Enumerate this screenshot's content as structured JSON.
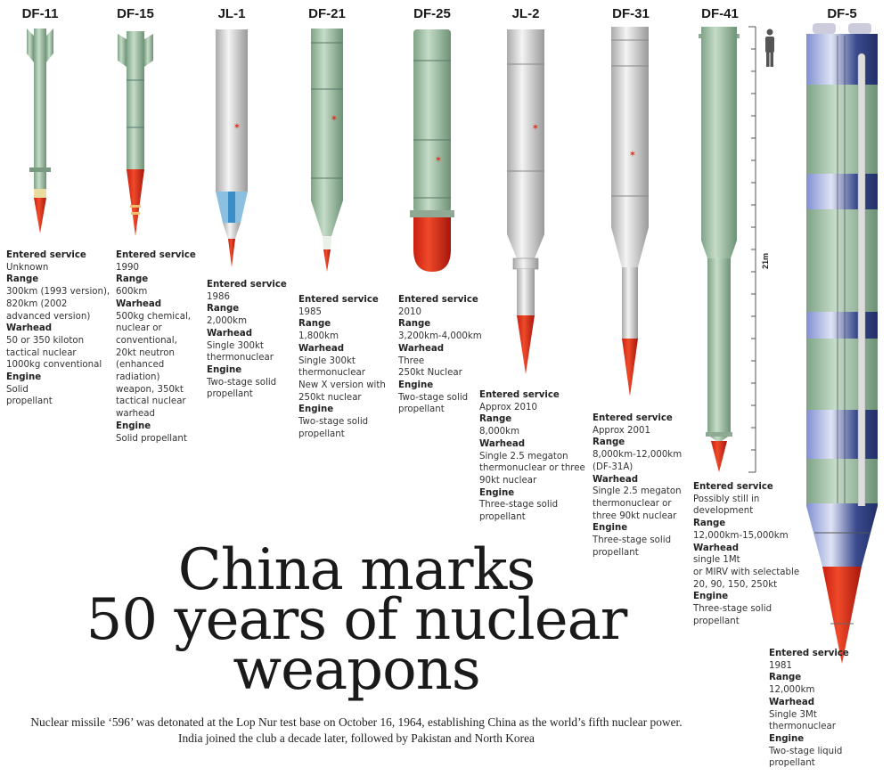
{
  "headline": [
    "China marks",
    "50 years of nuclear",
    "weapons"
  ],
  "subtitle": "Nuclear missile ‘596’ was detonated at the Lop Nur test base on October 16, 1964, establishing China as the world’s fifth nuclear power. India joined the club a decade later, followed by Pakistan and North Korea",
  "scale_label": "21m",
  "labels": {
    "service": "Entered service",
    "range": "Range",
    "warhead": "Warhead",
    "engine": "Engine"
  },
  "colors": {
    "green": "#9fbfa5",
    "silver": "#d8d8d8",
    "red": "#e0301e",
    "blue": "#6f7fc0",
    "navy": "#2c3a78"
  },
  "missiles": [
    {
      "name": "DF-11",
      "service": "Unknown",
      "range": "300km (1993 version),\n820km (2002\nadvanced version)",
      "warhead": "50 or 350 kiloton\ntactical nuclear\n1000kg conventional",
      "engine": "Solid\npropellant"
    },
    {
      "name": "DF-15",
      "service": "1990",
      "range": "600km",
      "warhead": "500kg chemical,\nnuclear or\nconventional,\n20kt neutron\n(enhanced\nradiation)\nweapon, 350kt\ntactical nuclear\nwarhead",
      "engine": "Solid propellant"
    },
    {
      "name": "JL-1",
      "service": "1986",
      "range": "2,000km",
      "warhead": "Single 300kt\nthermonuclear",
      "engine": "Two-stage solid\npropellant"
    },
    {
      "name": "DF-21",
      "service": "1985",
      "range": "1,800km",
      "warhead": "Single 300kt\nthermonuclear\nNew X version with\n250kt nuclear",
      "engine": "Two-stage solid\npropellant"
    },
    {
      "name": "DF-25",
      "service": "2010",
      "range": "3,200km-4,000km",
      "warhead": "Three\n250kt Nuclear",
      "engine": "Two-stage solid\npropellant"
    },
    {
      "name": "JL-2",
      "service": "Approx 2010",
      "range": "8,000km",
      "warhead": "Single 2.5 megaton\nthermonuclear or three\n90kt nuclear",
      "engine": "Three-stage solid\npropellant"
    },
    {
      "name": "DF-31",
      "service": "Approx 2001",
      "range": "8,000km-12,000km\n(DF-31A)",
      "warhead": "Single 2.5 megaton\nthermonuclear or\nthree 90kt nuclear",
      "engine": "Three-stage solid\npropellant"
    },
    {
      "name": "DF-41",
      "service": "Possibly still in\ndevelopment",
      "range": "12,000km-15,000km",
      "warhead": "single 1Mt\nor MIRV with selectable\n20, 90, 150, 250kt",
      "engine": "Three-stage solid\npropellant"
    },
    {
      "name": "DF-5",
      "service": "1981",
      "range": "12,000km",
      "warhead": "Single 3Mt\nthermonuclear",
      "engine": "Two-stage liquid propellant"
    }
  ]
}
